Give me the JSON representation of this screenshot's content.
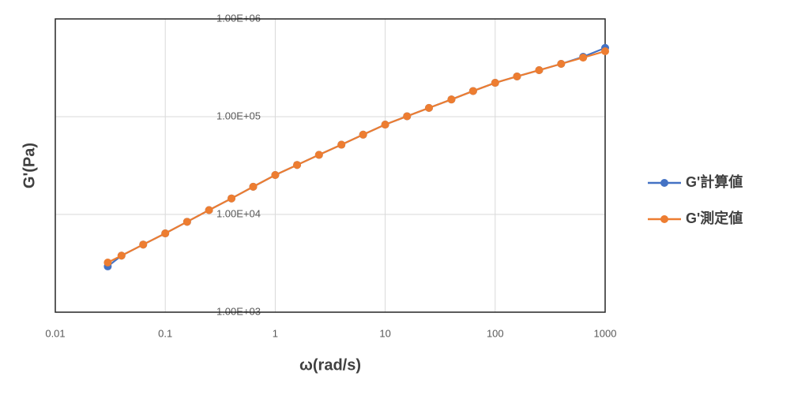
{
  "chart_data": {
    "type": "line",
    "xlabel": "ω(rad/s)",
    "ylabel": "G'(Pa)",
    "x": [
      0.03,
      0.04,
      0.063,
      0.1,
      0.158,
      0.25,
      0.4,
      0.63,
      1,
      1.58,
      2.5,
      4,
      6.3,
      10,
      15.8,
      25,
      40,
      63,
      100,
      158,
      251,
      398,
      631,
      1000
    ],
    "series": [
      {
        "name": "G'計算値",
        "color": "#4472c4",
        "values": [
          2940,
          3790,
          4920,
          6400,
          8410,
          11070,
          14580,
          19200,
          25300,
          32100,
          40700,
          51700,
          65500,
          83000,
          101000,
          123000,
          150000,
          183000,
          222000,
          258000,
          299000,
          347000,
          410000,
          505000
        ]
      },
      {
        "name": "G'測定値",
        "color": "#ed7d31",
        "values": [
          3220,
          3790,
          4920,
          6400,
          8410,
          11070,
          14580,
          19200,
          25300,
          32100,
          40700,
          51700,
          65500,
          83000,
          101000,
          123000,
          150000,
          183000,
          222000,
          258000,
          299000,
          347000,
          402000,
          467000
        ]
      }
    ],
    "xscale": "log",
    "yscale": "log",
    "xlim": [
      0.01,
      1000
    ],
    "ylim": [
      1000,
      1000000
    ],
    "xticks": [
      0.01,
      0.1,
      1,
      10,
      100,
      1000
    ],
    "yticks": [
      {
        "value": 1000,
        "label": "1.00E+03"
      },
      {
        "value": 10000,
        "label": "1.00E+04"
      },
      {
        "value": 100000,
        "label": "1.00E+05"
      },
      {
        "value": 1000000,
        "label": "1.00E+06"
      }
    ],
    "grid": true,
    "legend": "right"
  }
}
